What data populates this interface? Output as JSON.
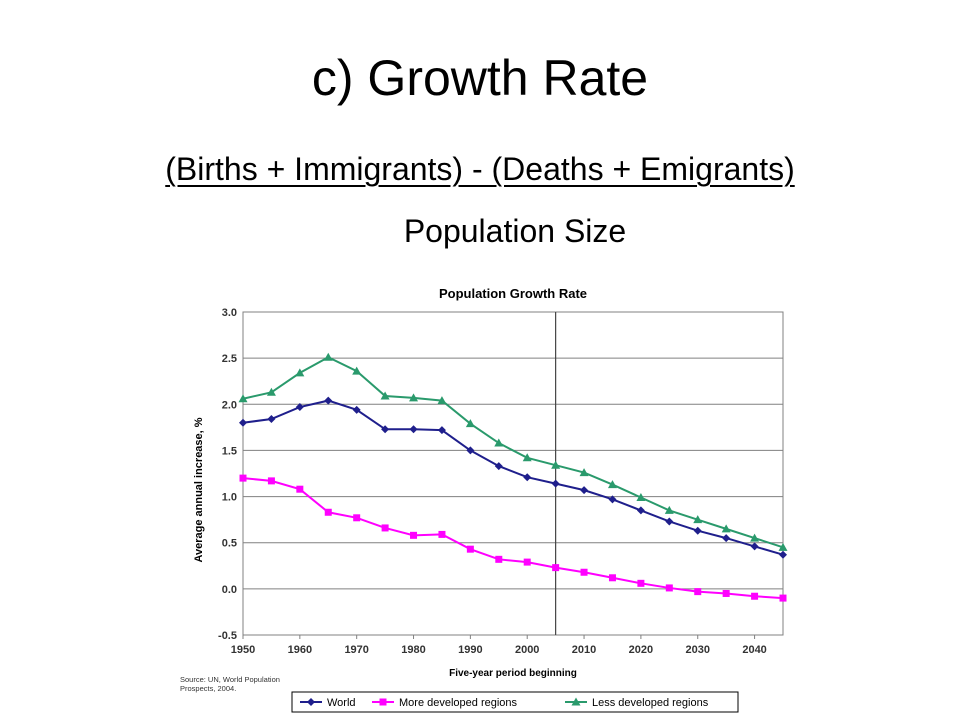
{
  "slide": {
    "title": "c)  Growth Rate",
    "numerator": "(Births + Immigrants)  - (Deaths + Emigrants)",
    "denominator": "Population Size"
  },
  "chart_data": {
    "type": "line",
    "title": "Population Growth Rate",
    "xlabel": "Five-year period beginning",
    "ylabel": "Average annual increase, %",
    "x": [
      1950,
      1955,
      1960,
      1965,
      1970,
      1975,
      1980,
      1985,
      1990,
      1995,
      2000,
      2005,
      2010,
      2015,
      2020,
      2025,
      2030,
      2035,
      2040,
      2045
    ],
    "xticks": [
      "1950",
      "1960",
      "1970",
      "1980",
      "1990",
      "2000",
      "2010",
      "2020",
      "2030",
      "2040"
    ],
    "yticks": [
      "3.0",
      "2.5",
      "2.0",
      "1.5",
      "1.0",
      "0.5",
      "0.0",
      "-0.5"
    ],
    "xlim": [
      1950,
      2045
    ],
    "ylim": [
      -0.5,
      3.0
    ],
    "grid": true,
    "vertical_marker_x": 2005,
    "legend_position": "bottom",
    "source_note": "Source: UN, World Population Prospects, 2004.",
    "series": [
      {
        "name": "World",
        "color": "#1f1f8c",
        "marker": "diamond",
        "values": [
          1.8,
          1.84,
          1.97,
          2.04,
          1.94,
          1.73,
          1.73,
          1.72,
          1.5,
          1.33,
          1.21,
          1.14,
          1.07,
          0.97,
          0.85,
          0.73,
          0.63,
          0.55,
          0.46,
          0.37
        ]
      },
      {
        "name": "More developed regions",
        "color": "#ff00ff",
        "marker": "square",
        "values": [
          1.2,
          1.17,
          1.08,
          0.83,
          0.77,
          0.66,
          0.58,
          0.59,
          0.43,
          0.32,
          0.29,
          0.23,
          0.18,
          0.12,
          0.06,
          0.01,
          -0.03,
          -0.05,
          -0.08,
          -0.1
        ]
      },
      {
        "name": "Less developed regions",
        "color": "#2a9a6c",
        "marker": "triangle",
        "values": [
          2.06,
          2.13,
          2.34,
          2.51,
          2.36,
          2.09,
          2.07,
          2.04,
          1.79,
          1.58,
          1.42,
          1.34,
          1.26,
          1.13,
          0.99,
          0.85,
          0.75,
          0.65,
          0.55,
          0.45
        ]
      }
    ]
  }
}
